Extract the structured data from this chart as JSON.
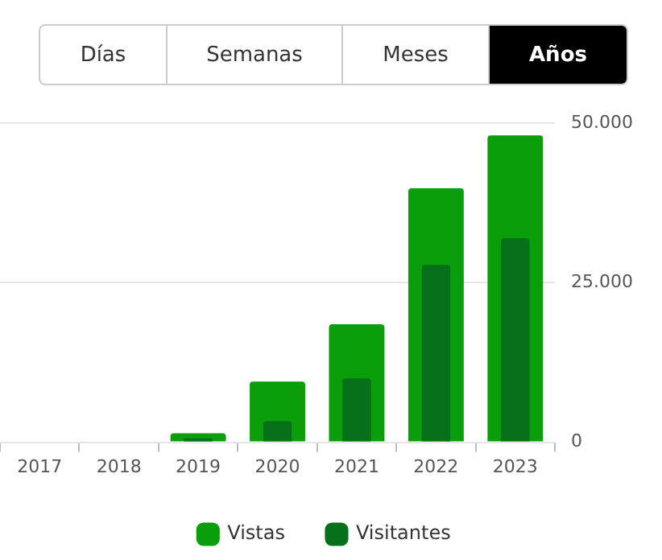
{
  "chart_data": {
    "type": "bar",
    "annotations": [
      "Días",
      "Semanas",
      "Meses",
      "Años"
    ],
    "categories": [
      "2017",
      "2018",
      "2019",
      "2020",
      "2021",
      "2022",
      "2023"
    ],
    "series": [
      {
        "name": "Vistas",
        "color": "#0a9e0a",
        "values": [
          0,
          0,
          1400,
          9500,
          18500,
          39800,
          48100
        ]
      },
      {
        "name": "Visitantes",
        "color": "#07701a",
        "values": [
          0,
          0,
          600,
          3300,
          10000,
          27800,
          32000
        ]
      }
    ],
    "ylim": [
      0,
      50000
    ],
    "yticks": [
      {
        "value": 0,
        "label": "0"
      },
      {
        "value": 25000,
        "label": "25.000"
      },
      {
        "value": 50000,
        "label": "50.000"
      }
    ],
    "grid": "y",
    "legend": "bottom"
  }
}
